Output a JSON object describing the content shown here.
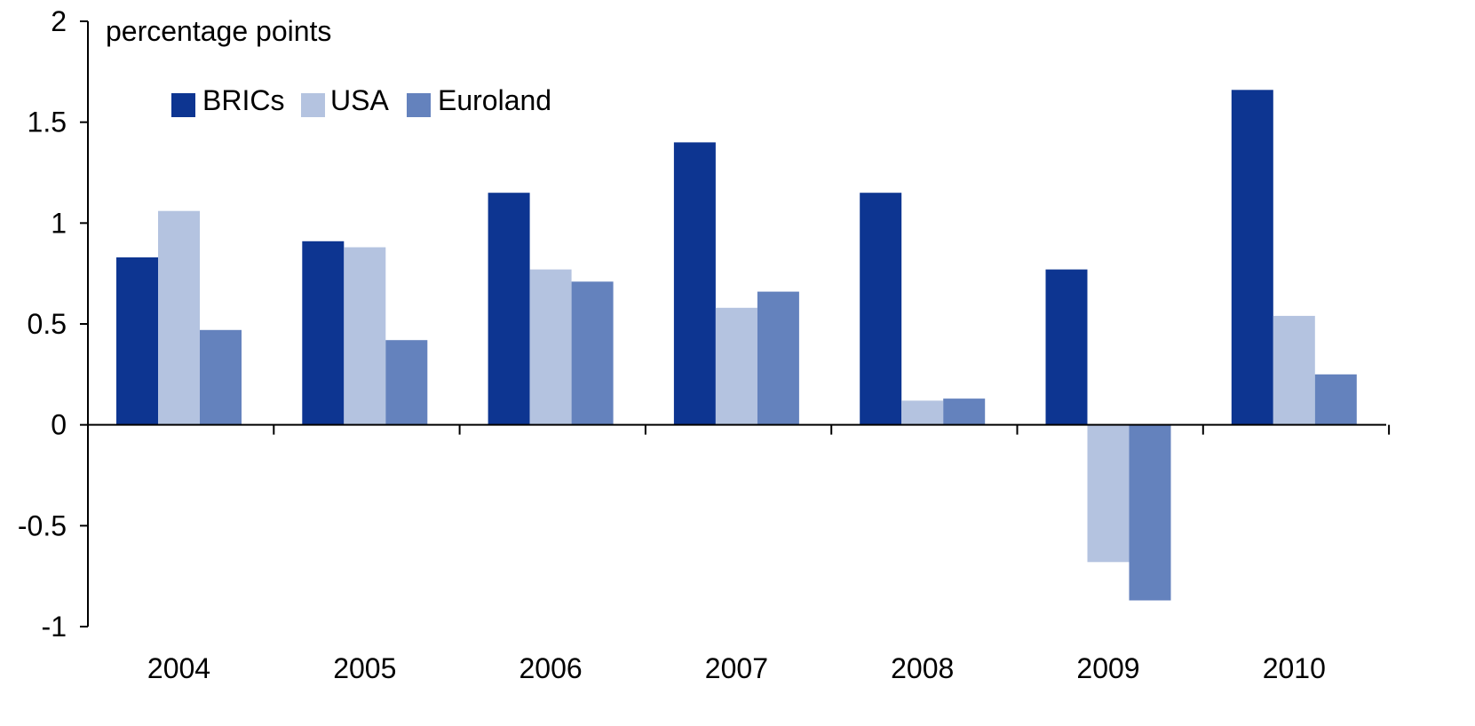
{
  "chart_data": {
    "type": "bar",
    "ylabel": "percentage points",
    "categories": [
      "2004",
      "2005",
      "2006",
      "2007",
      "2008",
      "2009",
      "2010"
    ],
    "series": [
      {
        "name": "BRICs",
        "color": "#0d3591",
        "values": [
          0.83,
          0.91,
          1.15,
          1.4,
          1.15,
          0.77,
          1.66
        ]
      },
      {
        "name": "USA",
        "color": "#b4c3e0",
        "values": [
          1.06,
          0.88,
          0.77,
          0.58,
          0.12,
          -0.68,
          0.54
        ]
      },
      {
        "name": "Euroland",
        "color": "#6482bd",
        "values": [
          0.47,
          0.42,
          0.71,
          0.66,
          0.13,
          -0.87,
          0.25
        ]
      }
    ],
    "ylim": [
      -1,
      2
    ],
    "yticks": [
      2,
      1.5,
      1,
      0.5,
      0,
      -0.5,
      -1
    ],
    "ytick_labels": [
      "2",
      "1.5",
      "1",
      "0.5",
      "0",
      "-0.5",
      "-1"
    ],
    "grid": false,
    "legend_position": "top-left"
  }
}
